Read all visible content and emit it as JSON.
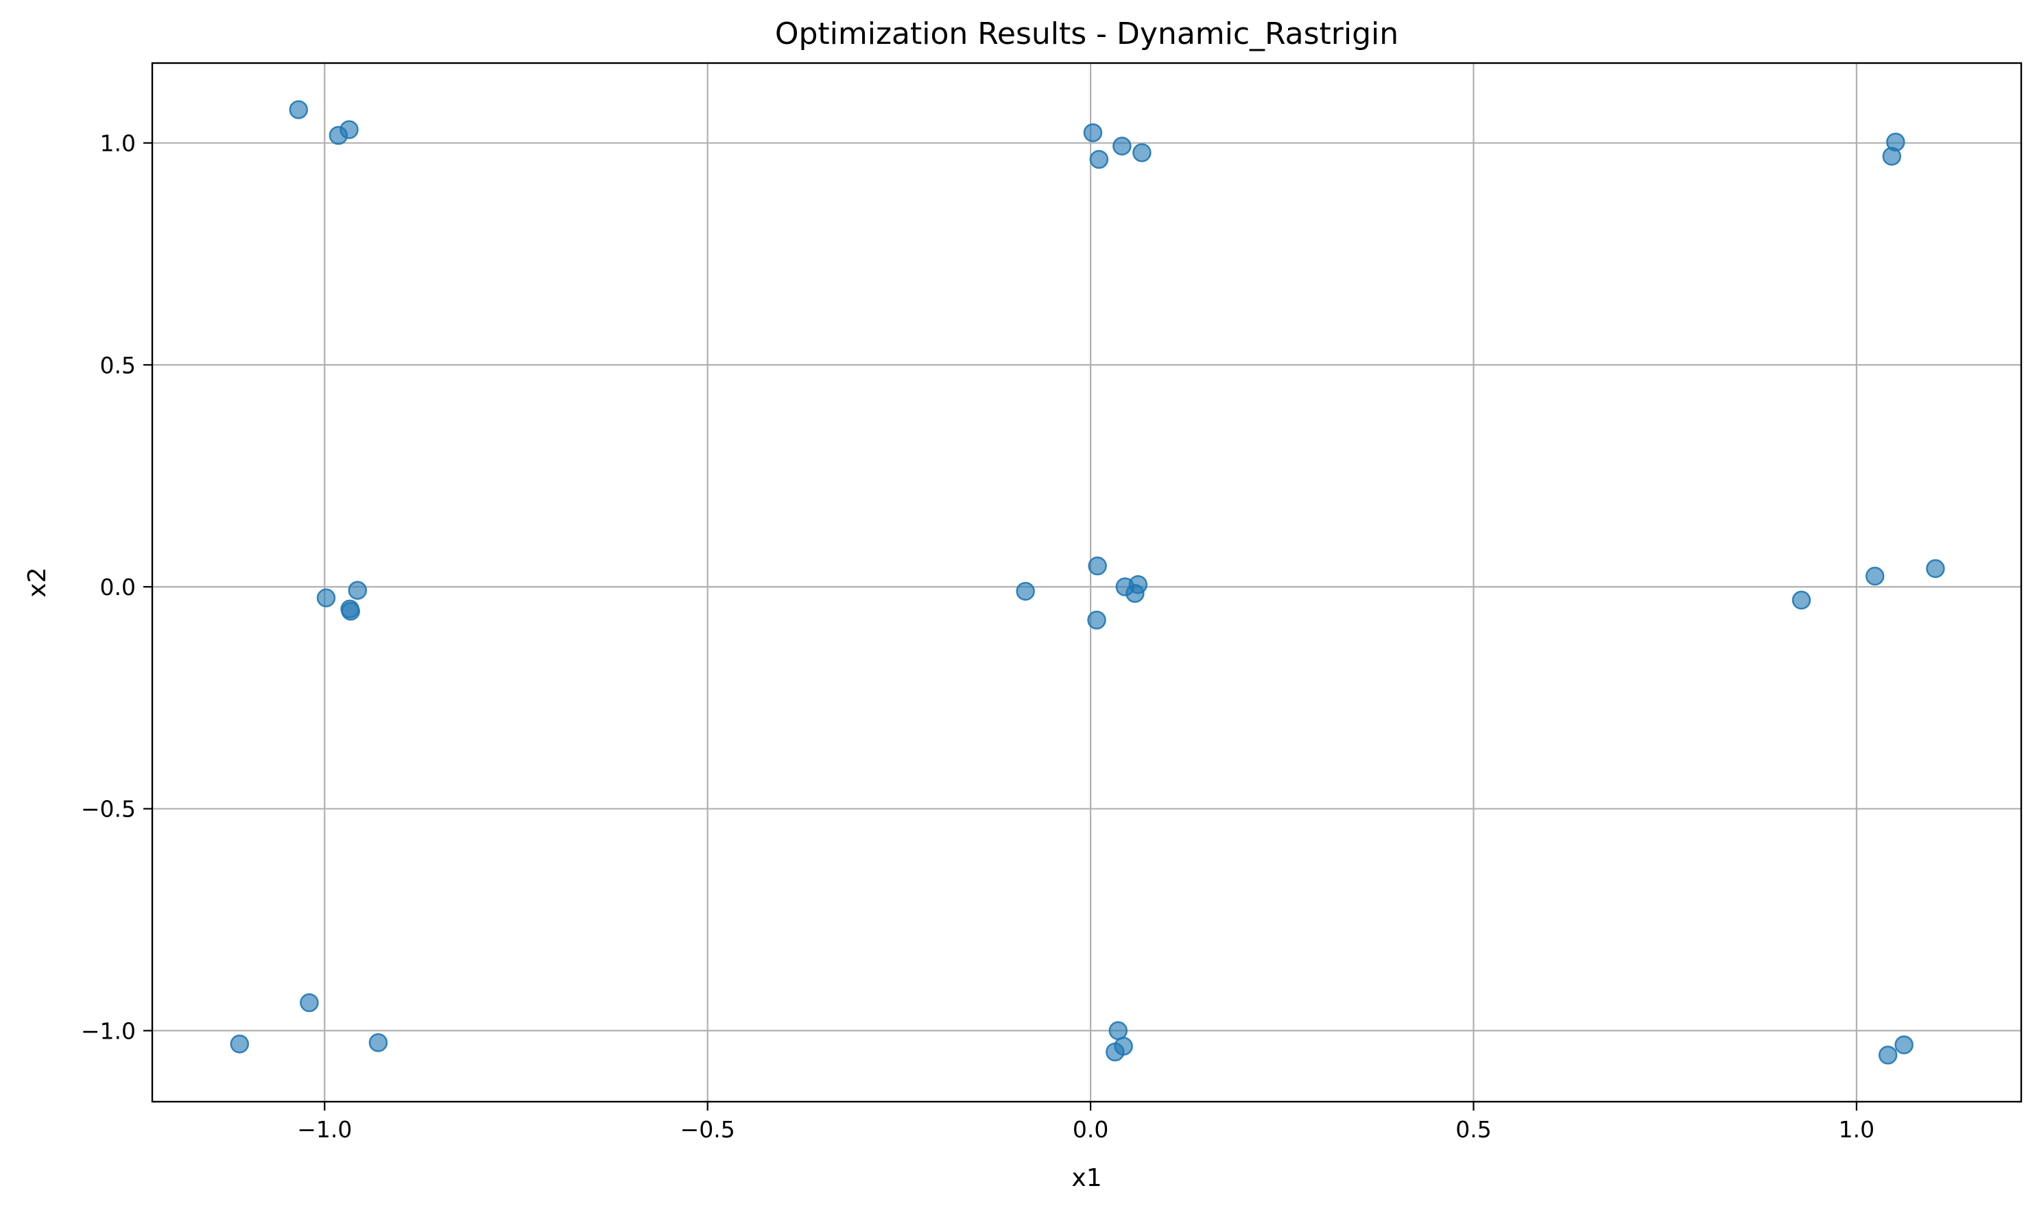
{
  "chart_data": {
    "type": "scatter",
    "title": "Optimization Results - Dynamic_Rastrigin",
    "xlabel": "x1",
    "ylabel": "x2",
    "xlim": [
      -1.225,
      1.215
    ],
    "ylim": [
      -1.16,
      1.18
    ],
    "xticks": [
      -1.0,
      -0.5,
      0.0,
      0.5,
      1.0
    ],
    "xtick_labels": [
      "−1.0",
      "−0.5",
      "0.0",
      "0.5",
      "1.0"
    ],
    "yticks": [
      -1.0,
      -0.5,
      0.0,
      0.5,
      1.0
    ],
    "ytick_labels": [
      "−1.0",
      "−0.5",
      "0.0",
      "0.5",
      "1.0"
    ],
    "grid": true,
    "marker_color": "#1f77b4",
    "marker_alpha": 0.6,
    "points": [
      {
        "x": -1.034,
        "y": 1.075
      },
      {
        "x": -0.982,
        "y": 1.017
      },
      {
        "x": -0.968,
        "y": 1.03
      },
      {
        "x": 0.003,
        "y": 1.023
      },
      {
        "x": 0.011,
        "y": 0.963
      },
      {
        "x": 0.041,
        "y": 0.993
      },
      {
        "x": 0.067,
        "y": 0.978
      },
      {
        "x": 1.051,
        "y": 1.002
      },
      {
        "x": 1.046,
        "y": 0.97
      },
      {
        "x": -0.998,
        "y": -0.025
      },
      {
        "x": -0.957,
        "y": -0.008
      },
      {
        "x": -0.967,
        "y": -0.05
      },
      {
        "x": -0.966,
        "y": -0.055
      },
      {
        "x": -0.085,
        "y": -0.01
      },
      {
        "x": 0.009,
        "y": 0.047
      },
      {
        "x": 0.008,
        "y": -0.075
      },
      {
        "x": 0.045,
        "y": 0.0
      },
      {
        "x": 0.062,
        "y": 0.005
      },
      {
        "x": 0.058,
        "y": -0.015
      },
      {
        "x": 0.928,
        "y": -0.03
      },
      {
        "x": 1.024,
        "y": 0.024
      },
      {
        "x": 1.103,
        "y": 0.041
      },
      {
        "x": -1.02,
        "y": -0.937
      },
      {
        "x": -1.111,
        "y": -1.03
      },
      {
        "x": -0.93,
        "y": -1.027
      },
      {
        "x": 0.036,
        "y": -1.0
      },
      {
        "x": 0.043,
        "y": -1.035
      },
      {
        "x": 0.032,
        "y": -1.048
      },
      {
        "x": 1.062,
        "y": -1.032
      },
      {
        "x": 1.041,
        "y": -1.055
      }
    ]
  }
}
